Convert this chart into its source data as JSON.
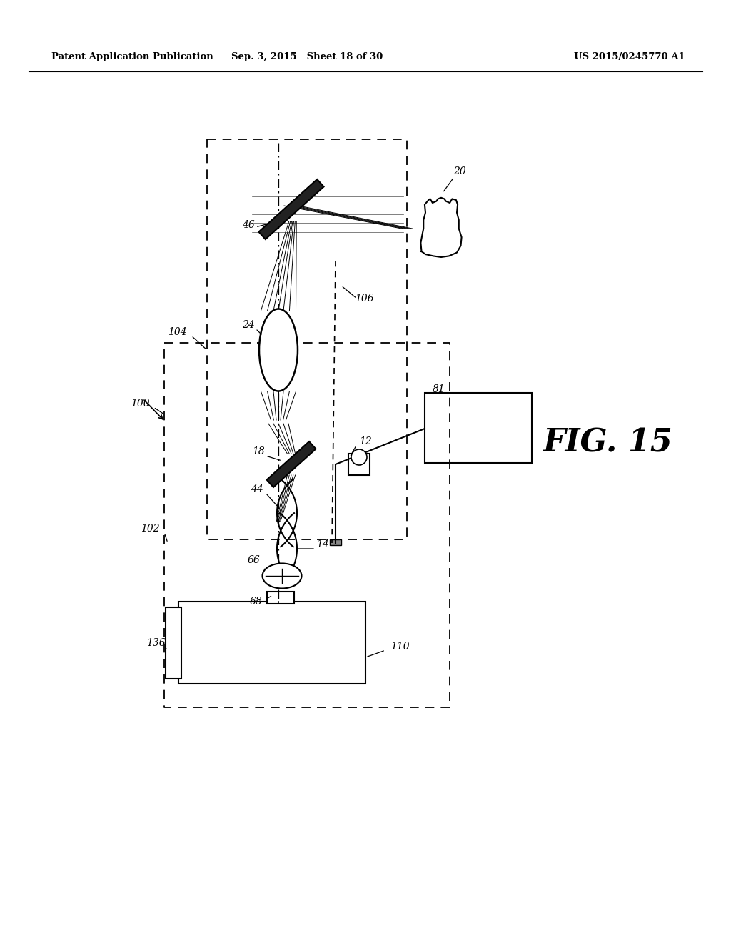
{
  "bg_color": "#ffffff",
  "header_left": "Patent Application Publication",
  "header_mid": "Sep. 3, 2015   Sheet 18 of 30",
  "header_right": "US 2015/0245770 A1",
  "fig_label": "FIG. 15"
}
